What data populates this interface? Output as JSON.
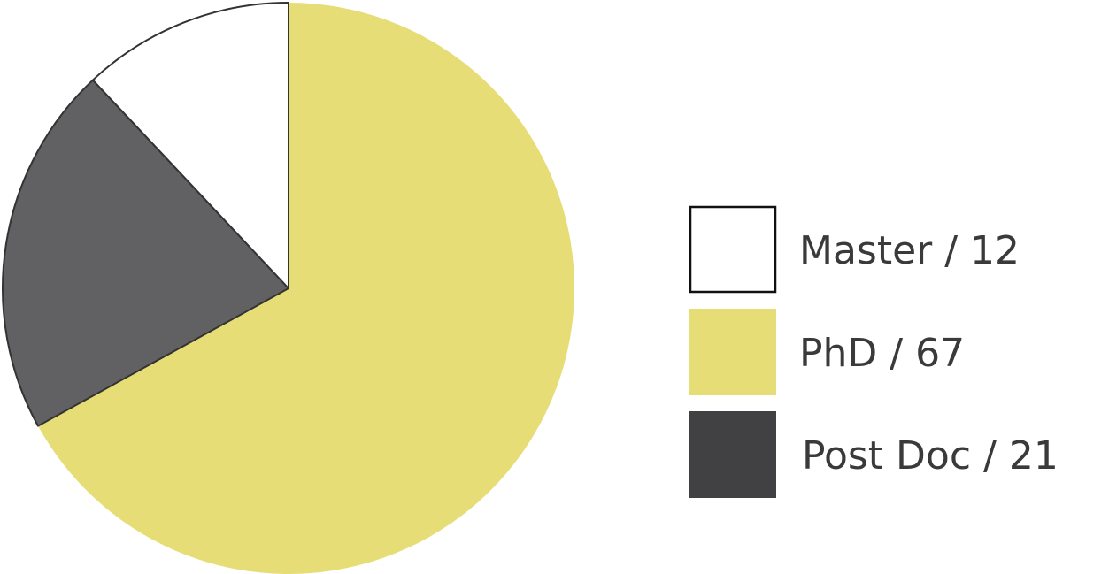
{
  "chart_data": {
    "type": "pie",
    "title": "",
    "legend_position": "right",
    "slices": [
      {
        "label": "Master / 12",
        "value": 12,
        "color": "#ffffff",
        "stroke": "#333333"
      },
      {
        "label": "PhD / 67",
        "value": 67,
        "color": "#e7dd77",
        "stroke": "none"
      },
      {
        "label": "Post Doc / 21",
        "value": 21,
        "color": "#616163",
        "legend_color": "#414143",
        "stroke": "#333333"
      }
    ]
  }
}
